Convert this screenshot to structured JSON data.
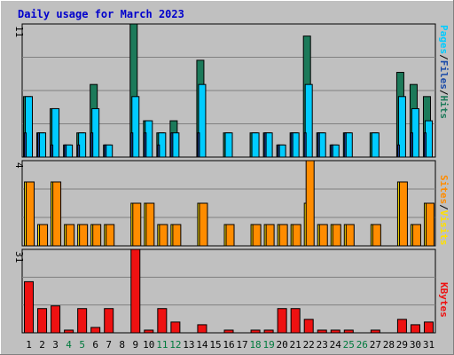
{
  "chart_data": [
    {
      "type": "bar",
      "title": "Daily usage for March 2023",
      "categories": [
        "1",
        "2",
        "3",
        "4",
        "5",
        "6",
        "7",
        "8",
        "9",
        "10",
        "11",
        "12",
        "13",
        "14",
        "15",
        "16",
        "17",
        "18",
        "19",
        "20",
        "21",
        "22",
        "23",
        "24",
        "25",
        "26",
        "27",
        "28",
        "29",
        "30",
        "31"
      ],
      "weekend_categories": [
        "4",
        "5",
        "11",
        "12",
        "18",
        "19",
        "25",
        "26"
      ],
      "ylabel_parts": [
        "Pages",
        "Files",
        "Hits"
      ],
      "ymax_label": "11",
      "ylim": [
        0,
        11
      ],
      "series": [
        {
          "name": "Hits",
          "color": "#1c7a5a",
          "values": [
            5,
            2,
            4,
            1,
            2,
            6,
            1,
            0,
            11,
            3,
            2,
            3,
            0,
            8,
            0,
            2,
            0,
            2,
            2,
            1,
            2,
            10,
            2,
            1,
            2,
            0,
            2,
            0,
            7,
            6,
            5
          ]
        },
        {
          "name": "Files",
          "color": "#1a4aa8",
          "values": [
            2,
            2,
            1,
            1,
            1,
            2,
            1,
            0,
            2,
            2,
            1,
            2,
            0,
            2,
            0,
            0,
            0,
            0,
            2,
            1,
            2,
            2,
            2,
            1,
            2,
            0,
            0,
            0,
            1,
            2,
            2
          ]
        },
        {
          "name": "Pages",
          "color": "#00ccff",
          "values": [
            5,
            2,
            4,
            1,
            2,
            4,
            1,
            0,
            5,
            3,
            2,
            2,
            0,
            6,
            0,
            2,
            0,
            2,
            2,
            1,
            2,
            6,
            2,
            1,
            2,
            0,
            2,
            0,
            5,
            4,
            3
          ]
        }
      ]
    },
    {
      "type": "bar",
      "ylabel_parts": [
        "Sites",
        "Visits"
      ],
      "ymax_label": "4",
      "ylim": [
        0,
        4
      ],
      "series": [
        {
          "name": "Visits",
          "color": "#ffe000",
          "values": [
            3,
            1,
            3,
            1,
            1,
            1,
            1,
            0,
            2,
            2,
            1,
            1,
            0,
            2,
            0,
            1,
            0,
            1,
            1,
            1,
            1,
            2,
            1,
            1,
            1,
            0,
            1,
            0,
            3,
            1,
            2
          ]
        },
        {
          "name": "Sites",
          "color": "#ff8c00",
          "values": [
            3,
            1,
            3,
            1,
            1,
            1,
            1,
            0,
            2,
            2,
            1,
            1,
            0,
            2,
            0,
            1,
            0,
            1,
            1,
            1,
            1,
            4,
            1,
            1,
            1,
            0,
            1,
            0,
            3,
            1,
            2
          ]
        }
      ]
    },
    {
      "type": "bar",
      "ylabel_parts": [
        "KBytes"
      ],
      "ymax_label": "31",
      "ylim": [
        0,
        31
      ],
      "series": [
        {
          "name": "KBytes",
          "color": "#ee1111",
          "values": [
            19,
            9,
            10,
            1,
            9,
            2,
            9,
            0,
            31,
            1,
            9,
            4,
            0,
            3,
            0,
            1,
            0,
            1,
            1,
            9,
            9,
            5,
            1,
            1,
            1,
            0,
            1,
            0,
            5,
            3,
            4
          ]
        }
      ]
    }
  ],
  "colors": {
    "background": "#c0c0c0",
    "plot": "#c0c0c0",
    "gridline": "#808080",
    "title": "#0000cc",
    "weekday_label": "#000000",
    "weekend_label": "#007a3d",
    "separator": "#000000"
  }
}
